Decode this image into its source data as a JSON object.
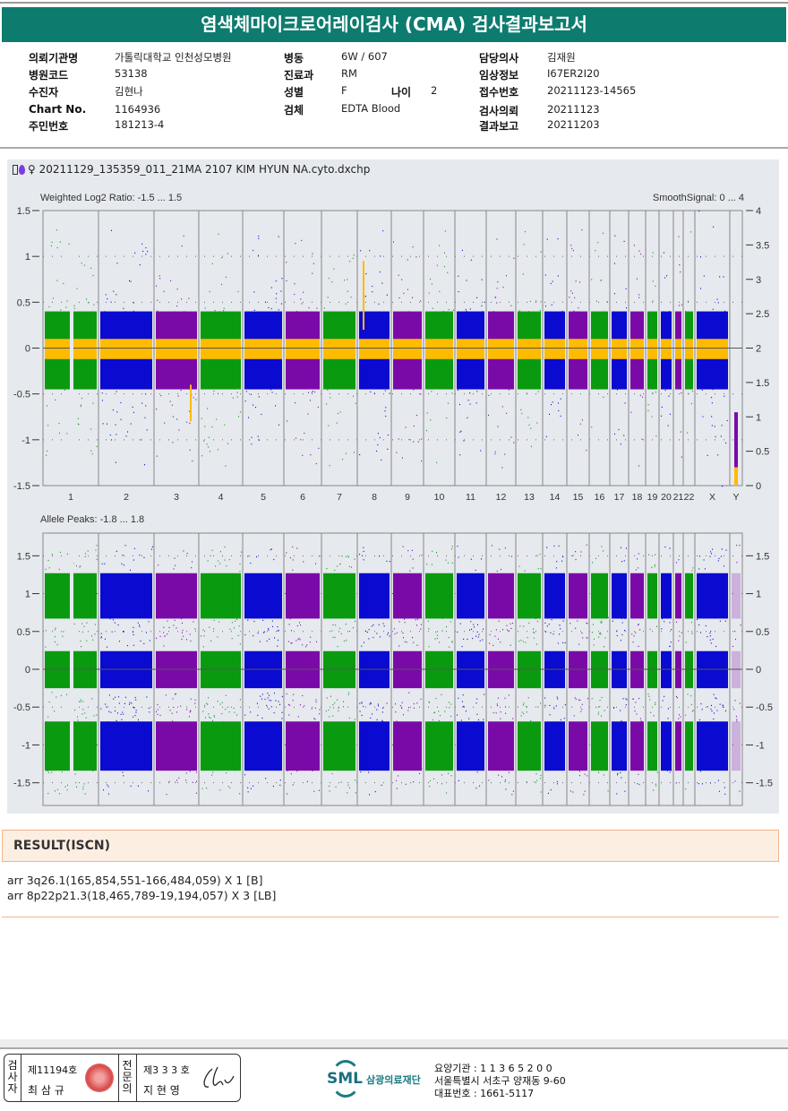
{
  "title": "염색체마이크로어레이검사 (CMA) 검사결과보고서",
  "info": {
    "col1": [
      {
        "label": "의뢰기관명",
        "value": "가톨릭대학교 인천성모병원"
      },
      {
        "label": "병원코드",
        "value": "53138"
      },
      {
        "label": "수진자",
        "value": "김현나"
      },
      {
        "label": "Chart No.",
        "value": "1164936"
      },
      {
        "label": "주민번호",
        "value": "181213-4"
      }
    ],
    "col2": [
      {
        "label": "병동",
        "value": "6W / 607"
      },
      {
        "label": "진료과",
        "value": "RM"
      },
      {
        "label": "성별",
        "value": "F"
      },
      {
        "label": "검체",
        "value": "EDTA Blood"
      }
    ],
    "age": {
      "label": "나이",
      "value": "2"
    },
    "col3": [
      {
        "label": "담당의사",
        "value": "김재원"
      },
      {
        "label": "임상정보",
        "value": "I67ER2I20"
      },
      {
        "label": "접수번호",
        "value": "20211123-14565"
      },
      {
        "label": "검사의뢰",
        "value": "20211123"
      },
      {
        "label": "결과보고",
        "value": "20211203"
      }
    ]
  },
  "file_title": "♀ 20211129_135359_011_21MA 2107 KIM HYUN NA.cyto.dxchp",
  "chart_data": [
    {
      "type": "scatter",
      "title": "Weighted Log2 Ratio: -1.5 ... 1.5",
      "right_title": "SmoothSignal: 0 ... 4",
      "ylim": [
        -1.5,
        1.5
      ],
      "yticks": [
        "1.5",
        "1",
        "0.5",
        "0",
        "-0.5",
        "-1",
        "-1.5"
      ],
      "y2lim": [
        0,
        4
      ],
      "y2ticks": [
        "4",
        "3.5",
        "3",
        "2.5",
        "2",
        "1.5",
        "1",
        "0.5",
        "0"
      ],
      "categories": [
        "1",
        "2",
        "3",
        "4",
        "5",
        "6",
        "7",
        "8",
        "9",
        "10",
        "11",
        "12",
        "13",
        "14",
        "15",
        "16",
        "17",
        "18",
        "19",
        "20",
        "21",
        "22",
        "X",
        "Y"
      ],
      "band": [
        -0.45,
        0.4
      ],
      "smooth_signal_mean": 2.0,
      "y_chrY_smooth": 0.1
    },
    {
      "type": "scatter",
      "title": "Allele Peaks: -1.8 ... 1.8",
      "ylim": [
        -1.8,
        1.8
      ],
      "yticks": [
        "1.5",
        "1",
        "0.5",
        "0",
        "-0.5",
        "-1",
        "-1.5"
      ],
      "peaks": [
        {
          "center": 1,
          "range": [
            0.67,
            1.27
          ]
        },
        {
          "center": 0,
          "range": [
            -0.25,
            0.24
          ]
        },
        {
          "center": -1,
          "range": [
            -1.34,
            -0.69
          ]
        }
      ]
    }
  ],
  "colors": {
    "green": "#0a9a10",
    "blue": "#0a0ad0",
    "purple": "#7a0aa8",
    "orange": "#ffbb00",
    "teal": "#0e7b6f"
  },
  "result": {
    "heading": "RESULT(ISCN)",
    "lines": [
      "arr 3q26.1(165,854,551-166,484,059) X 1 [B]",
      "arr 8p22p21.3(18,465,789-19,194,057) X 3 [LB]"
    ]
  },
  "footer": {
    "examiner_label": "검사자",
    "examiner_no": "제11194호",
    "examiner_name": "최 삼 규",
    "specialist_label": "전문의",
    "specialist_no": "제3 3 3 호",
    "specialist_name": "지 현 영",
    "logo": "SML",
    "org": "삼광의료재단",
    "lines": [
      "요양기관 : 1 1 3 6 5 2 0 0",
      "서울특별시 서초구 양재동 9-60",
      "대표번호 : 1661-5117"
    ]
  }
}
